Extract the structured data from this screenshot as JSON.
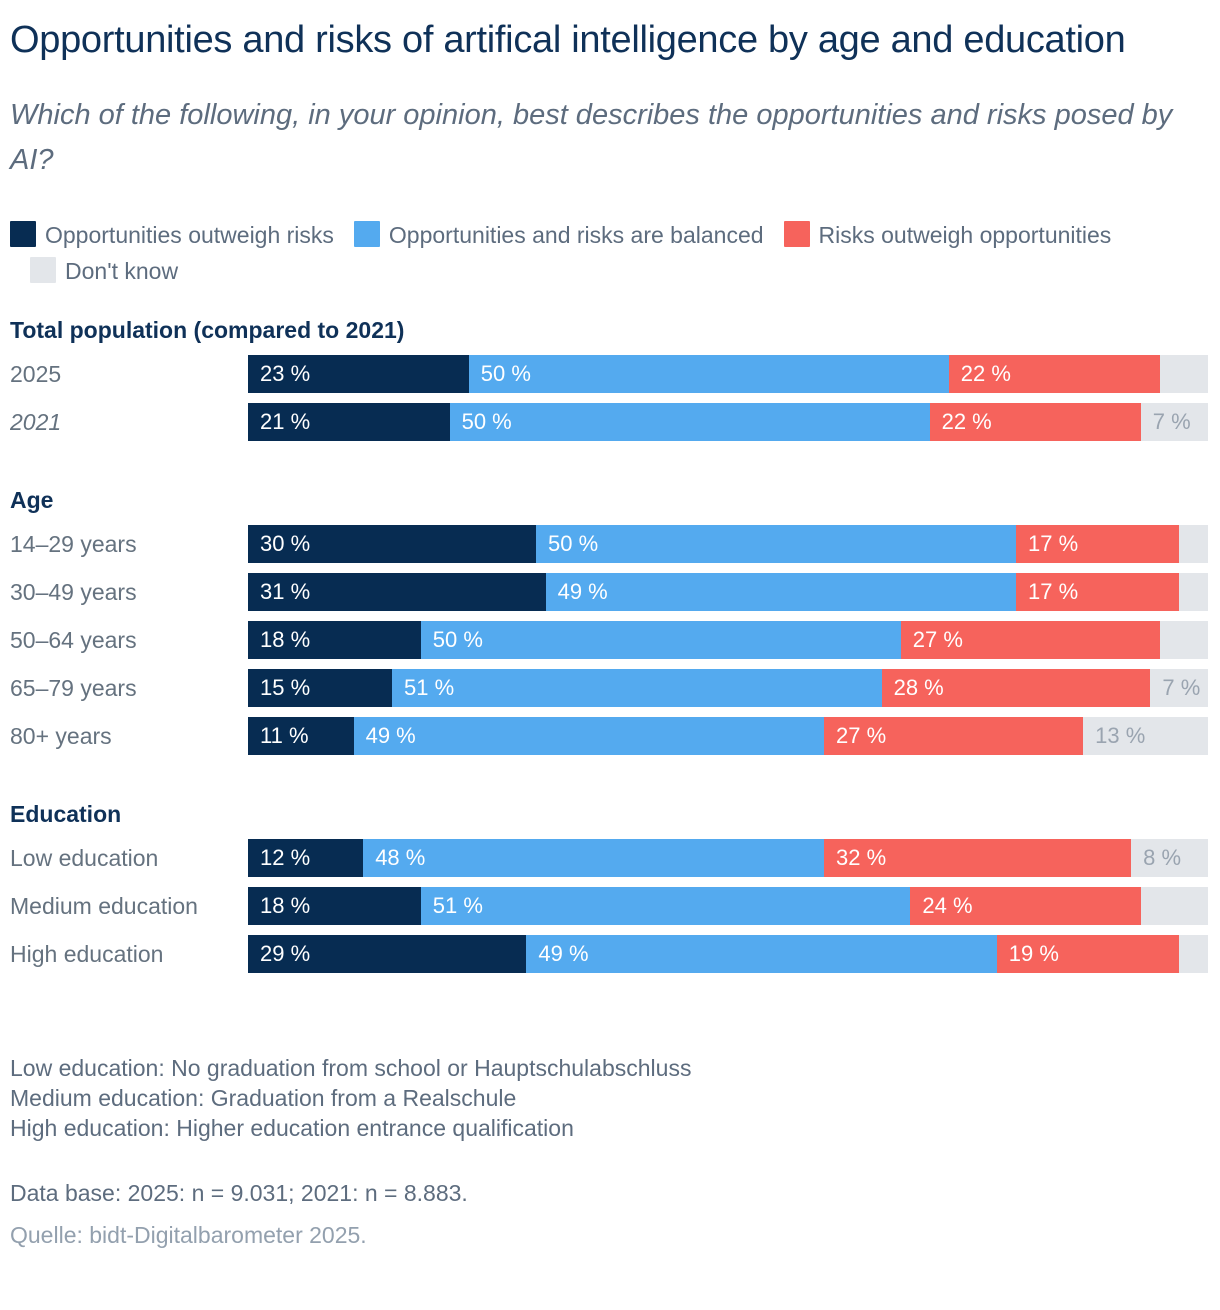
{
  "header": {
    "title": "Opportunities and risks of artifical intelligence by age and education",
    "subtitle": "Which of the following, in your opinion, best describes the opportunities and risks posed by AI?"
  },
  "legend": {
    "items": [
      {
        "name": "opportunities-outweigh-risks",
        "label": "Opportunities outweigh risks",
        "color": "#072c52"
      },
      {
        "name": "opportunities-and-risks-balanced",
        "label": "Opportunities and risks are balanced",
        "color": "#54aaef"
      },
      {
        "name": "risks-outweigh-opportunities",
        "label": "Risks outweigh opportunities",
        "color": "#f6635c"
      },
      {
        "name": "dont-know",
        "label": "Don't know",
        "color": "#e3e6ea"
      }
    ]
  },
  "chart_data": {
    "type": "bar",
    "orientation": "horizontal",
    "stacked": true,
    "unit": "percent",
    "x_range": [
      0,
      100
    ],
    "series": [
      "Opportunities outweigh risks",
      "Opportunities and risks are balanced",
      "Risks outweigh opportunities",
      "Don't know"
    ],
    "series_colors": [
      "#072c52",
      "#54aaef",
      "#f6635c",
      "#e3e6ea"
    ],
    "groups": [
      {
        "title": "Total population (compared to 2021)",
        "rows": [
          {
            "label": "2025",
            "italic": false,
            "values": [
              23,
              50,
              22,
              5
            ],
            "bar_labels": [
              "23 %",
              "50 %",
              "22 %",
              ""
            ]
          },
          {
            "label": "2021",
            "italic": true,
            "values": [
              21,
              50,
              22,
              7
            ],
            "bar_labels": [
              "21 %",
              "50 %",
              "22 %",
              "7 %"
            ]
          }
        ]
      },
      {
        "title": "Age",
        "rows": [
          {
            "label": "14–29 years",
            "italic": false,
            "values": [
              30,
              50,
              17,
              3
            ],
            "bar_labels": [
              "30 %",
              "50 %",
              "17 %",
              ""
            ]
          },
          {
            "label": "30–49 years",
            "italic": false,
            "values": [
              31,
              49,
              17,
              3
            ],
            "bar_labels": [
              "31 %",
              "49 %",
              "17 %",
              ""
            ]
          },
          {
            "label": "50–64 years",
            "italic": false,
            "values": [
              18,
              50,
              27,
              5
            ],
            "bar_labels": [
              "18 %",
              "50 %",
              "27 %",
              ""
            ]
          },
          {
            "label": "65–79 years",
            "italic": false,
            "values": [
              15,
              51,
              28,
              7
            ],
            "bar_labels": [
              "15 %",
              "51 %",
              "28 %",
              "7 %"
            ]
          },
          {
            "label": "80+ years",
            "italic": false,
            "values": [
              11,
              49,
              27,
              13
            ],
            "bar_labels": [
              "11 %",
              "49 %",
              "27 %",
              "13 %"
            ]
          }
        ]
      },
      {
        "title": "Education",
        "rows": [
          {
            "label": "Low education",
            "italic": false,
            "values": [
              12,
              48,
              32,
              8
            ],
            "bar_labels": [
              "12 %",
              "48 %",
              "32 %",
              "8 %"
            ]
          },
          {
            "label": "Medium education",
            "italic": false,
            "values": [
              18,
              51,
              24,
              7
            ],
            "bar_labels": [
              "18 %",
              "51 %",
              "24 %",
              ""
            ]
          },
          {
            "label": "High education",
            "italic": false,
            "values": [
              29,
              49,
              19,
              3
            ],
            "bar_labels": [
              "29 %",
              "49 %",
              "19 %",
              ""
            ]
          }
        ]
      }
    ]
  },
  "footnotes": [
    "Low education: No graduation from school or Hauptschulabschluss",
    "Medium education: Graduation from a Realschule",
    "High education: Higher education entrance qualification"
  ],
  "notes": {
    "data_base": "Data base: 2025: n = 9.031; 2021: n = 8.883.",
    "source": "Quelle: bidt-Digitalbarometer 2025."
  },
  "colors": {
    "title": "#0f3158",
    "subtitle": "#5d6c7e",
    "row_label": "#65727f",
    "bar_label_light": "#ffffff",
    "bar_label_gray": "#9aa4b0",
    "source": "#93a0ae"
  }
}
